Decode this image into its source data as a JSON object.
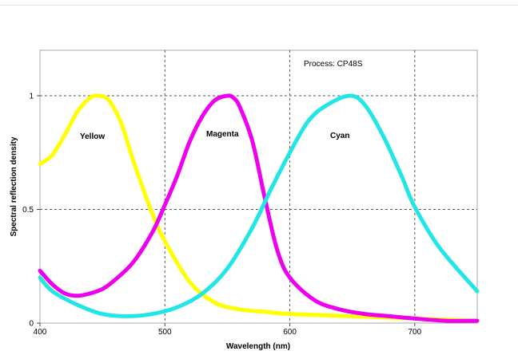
{
  "chart_data": {
    "type": "line",
    "title": "",
    "annotation": "Process: CP48S",
    "xlabel": "Wavelength (nm)",
    "ylabel": "Spectral reflection density",
    "xlim": [
      400,
      750
    ],
    "ylim": [
      0,
      1.2
    ],
    "x_ticks": [
      400,
      500,
      600,
      700
    ],
    "y_ticks": [
      0,
      0.5,
      1
    ],
    "y_tick_labels": [
      "0",
      "0.5",
      "1"
    ],
    "grid": "dashed vertical lines at 500, 600, 700; dashed horizontal lines at 0.5 and 1",
    "legend": "none (series labelled inline)",
    "series": [
      {
        "name": "Yellow",
        "color": "#ffff00",
        "x": [
          400,
          410,
          420,
          430,
          440,
          447,
          455,
          465,
          475,
          490,
          500,
          520,
          540,
          560,
          580,
          600,
          650,
          700,
          750
        ],
        "y": [
          0.7,
          0.74,
          0.83,
          0.93,
          0.99,
          1.0,
          0.98,
          0.88,
          0.71,
          0.48,
          0.36,
          0.18,
          0.09,
          0.06,
          0.05,
          0.04,
          0.03,
          0.02,
          0.01
        ]
      },
      {
        "name": "Magenta",
        "color": "#ee00ee",
        "x": [
          400,
          410,
          420,
          430,
          440,
          450,
          460,
          475,
          490,
          500,
          510,
          520,
          530,
          540,
          550,
          555,
          560,
          570,
          580,
          590,
          600,
          620,
          640,
          660,
          680,
          700,
          725,
          750
        ],
        "y": [
          0.23,
          0.17,
          0.13,
          0.12,
          0.13,
          0.15,
          0.19,
          0.27,
          0.4,
          0.52,
          0.65,
          0.8,
          0.91,
          0.98,
          1.0,
          0.99,
          0.95,
          0.8,
          0.55,
          0.32,
          0.2,
          0.1,
          0.06,
          0.04,
          0.03,
          0.02,
          0.01,
          0.01
        ]
      },
      {
        "name": "Cyan",
        "color": "#22e5e5",
        "x": [
          400,
          410,
          430,
          450,
          470,
          490,
          510,
          530,
          550,
          570,
          585,
          600,
          615,
          630,
          648,
          660,
          675,
          690,
          700,
          720,
          750
        ],
        "y": [
          0.2,
          0.14,
          0.08,
          0.04,
          0.03,
          0.04,
          0.07,
          0.13,
          0.24,
          0.42,
          0.59,
          0.75,
          0.89,
          0.96,
          1.0,
          0.96,
          0.82,
          0.64,
          0.51,
          0.33,
          0.14
        ]
      }
    ]
  }
}
